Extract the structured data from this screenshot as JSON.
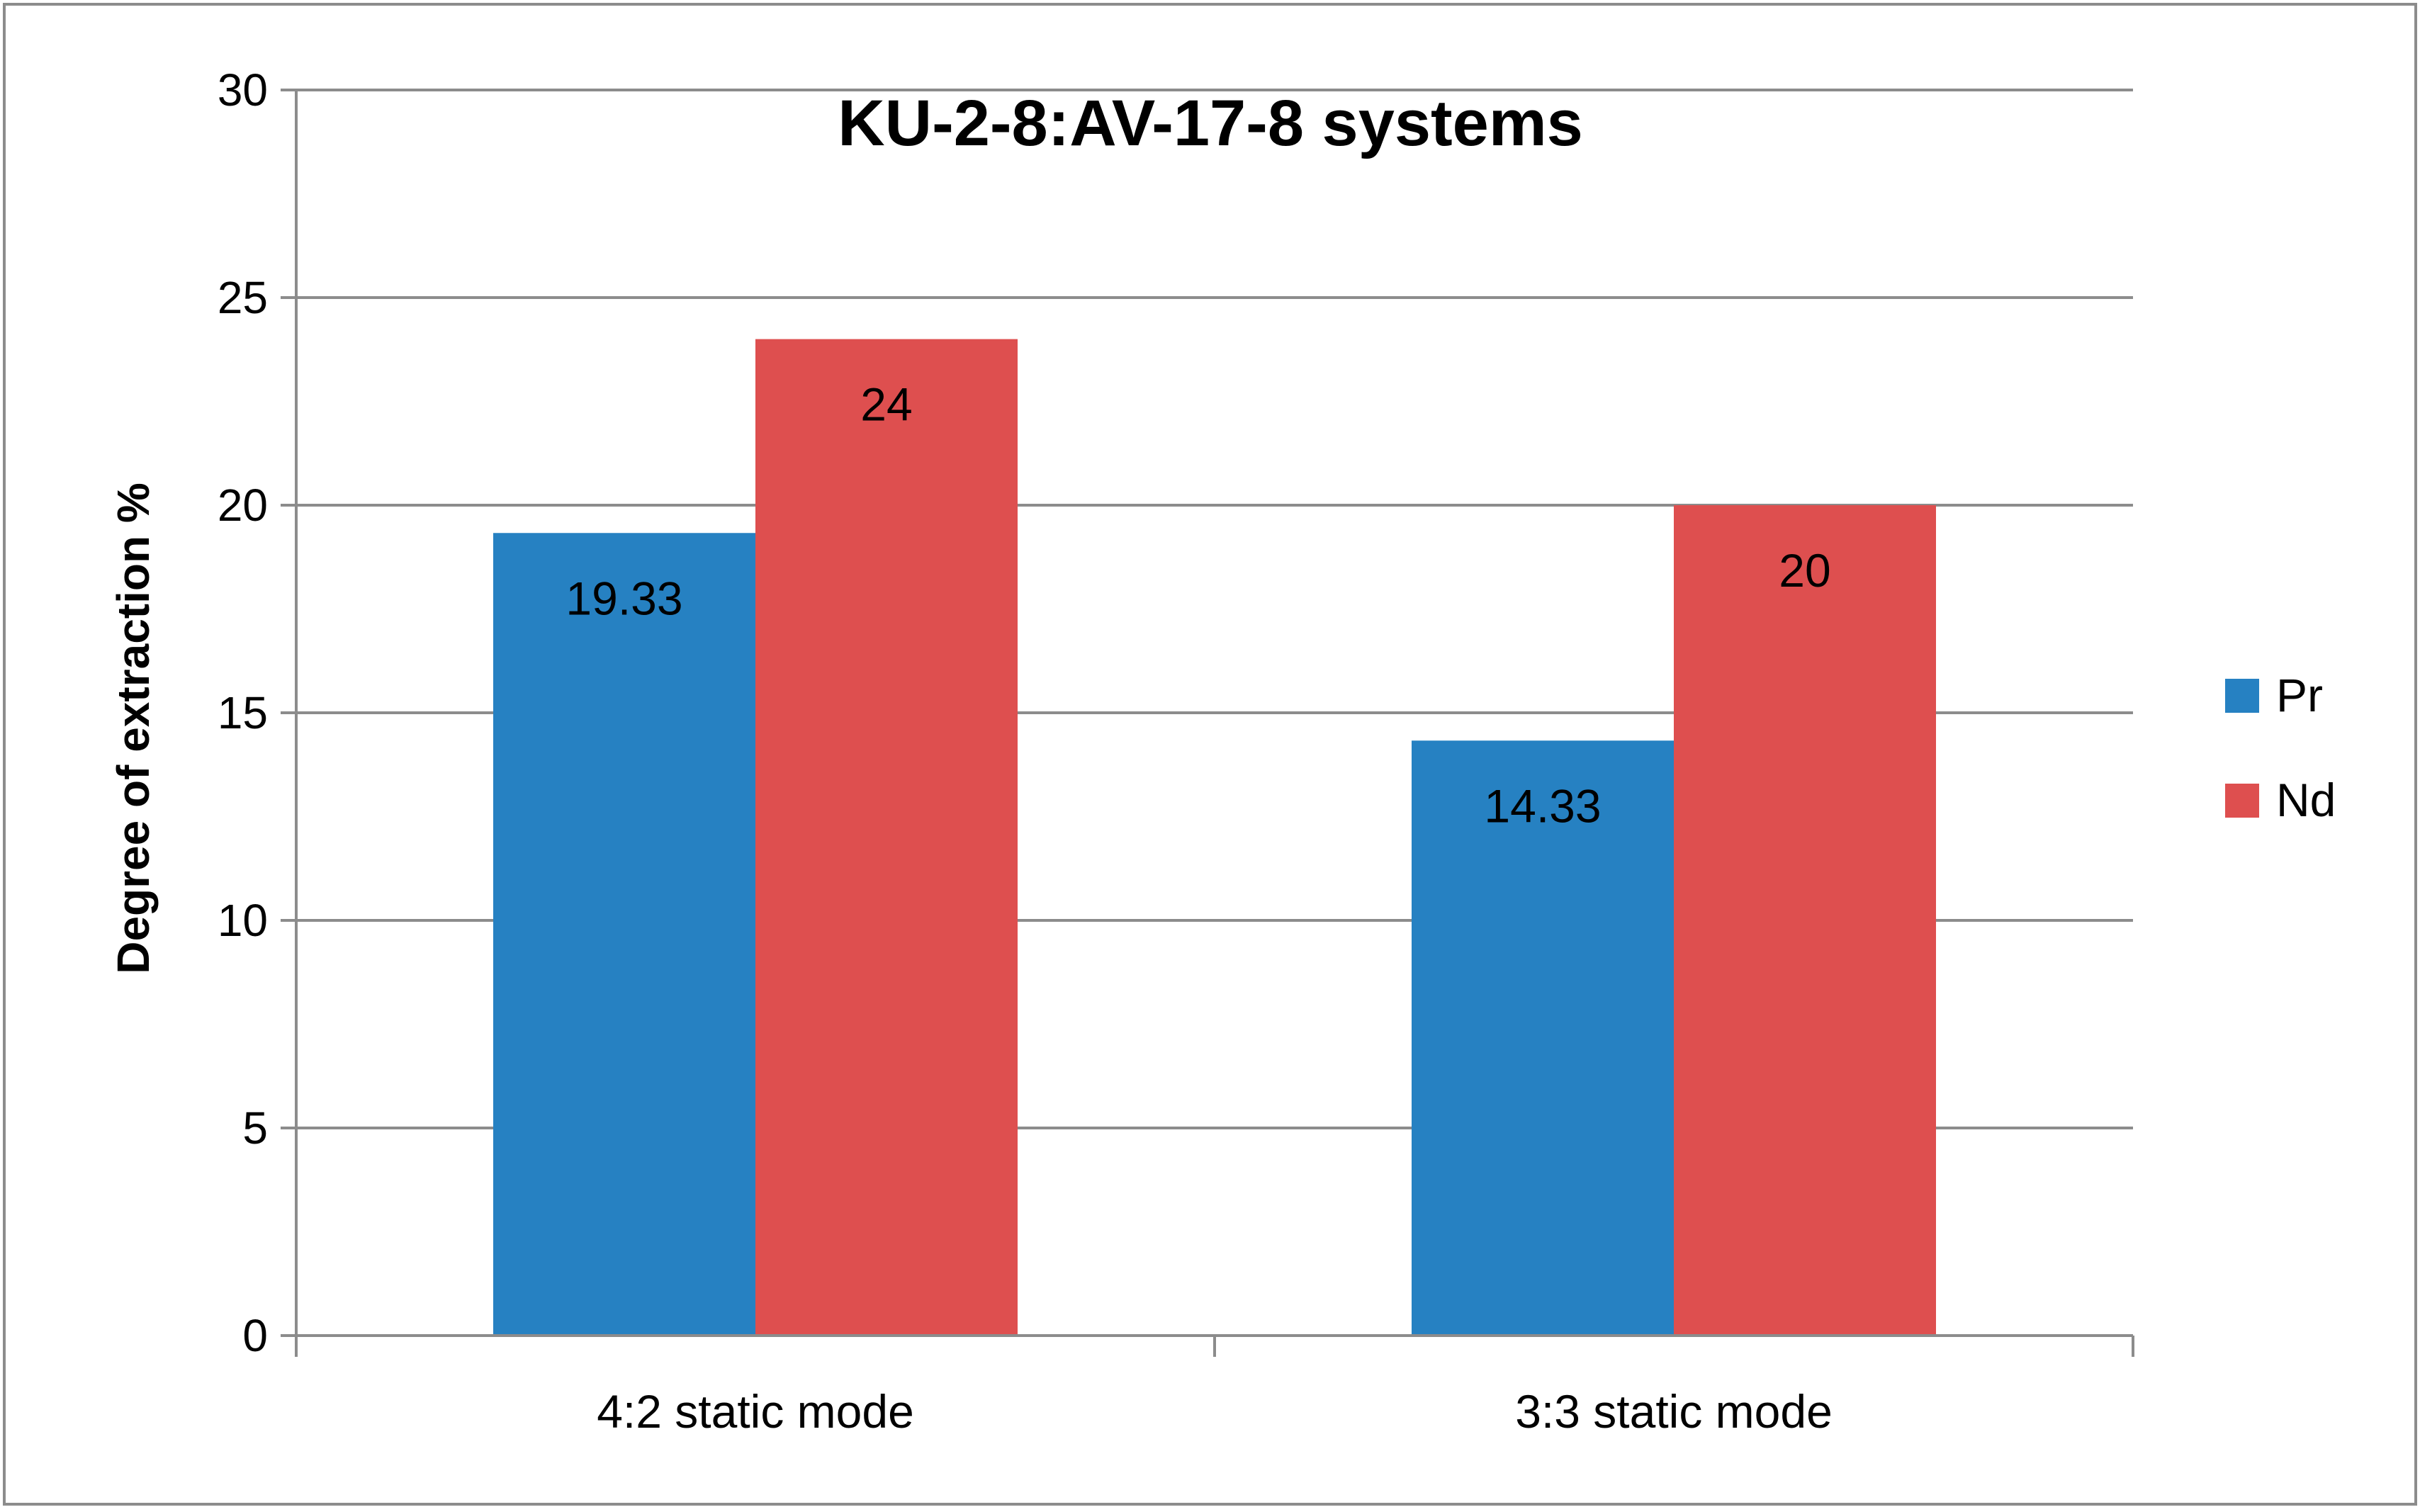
{
  "chart_data": {
    "type": "bar",
    "title": "KU-2-8:AV-17-8 systems",
    "ylabel": "Degree of extraction %",
    "xlabel": "",
    "categories": [
      "4:2 static mode",
      "3:3 static mode"
    ],
    "series": [
      {
        "name": "Pr",
        "values": [
          19.33,
          14.33
        ],
        "labels": [
          "19.33",
          "14.33"
        ],
        "color": "#2681C2"
      },
      {
        "name": "Nd",
        "values": [
          24,
          20
        ],
        "labels": [
          "24",
          "20"
        ],
        "color": "#DE4F4F"
      }
    ],
    "ylim": [
      0,
      30
    ],
    "yticks": [
      0,
      5,
      10,
      15,
      20,
      25,
      30
    ],
    "grid": true,
    "legend": "right"
  }
}
